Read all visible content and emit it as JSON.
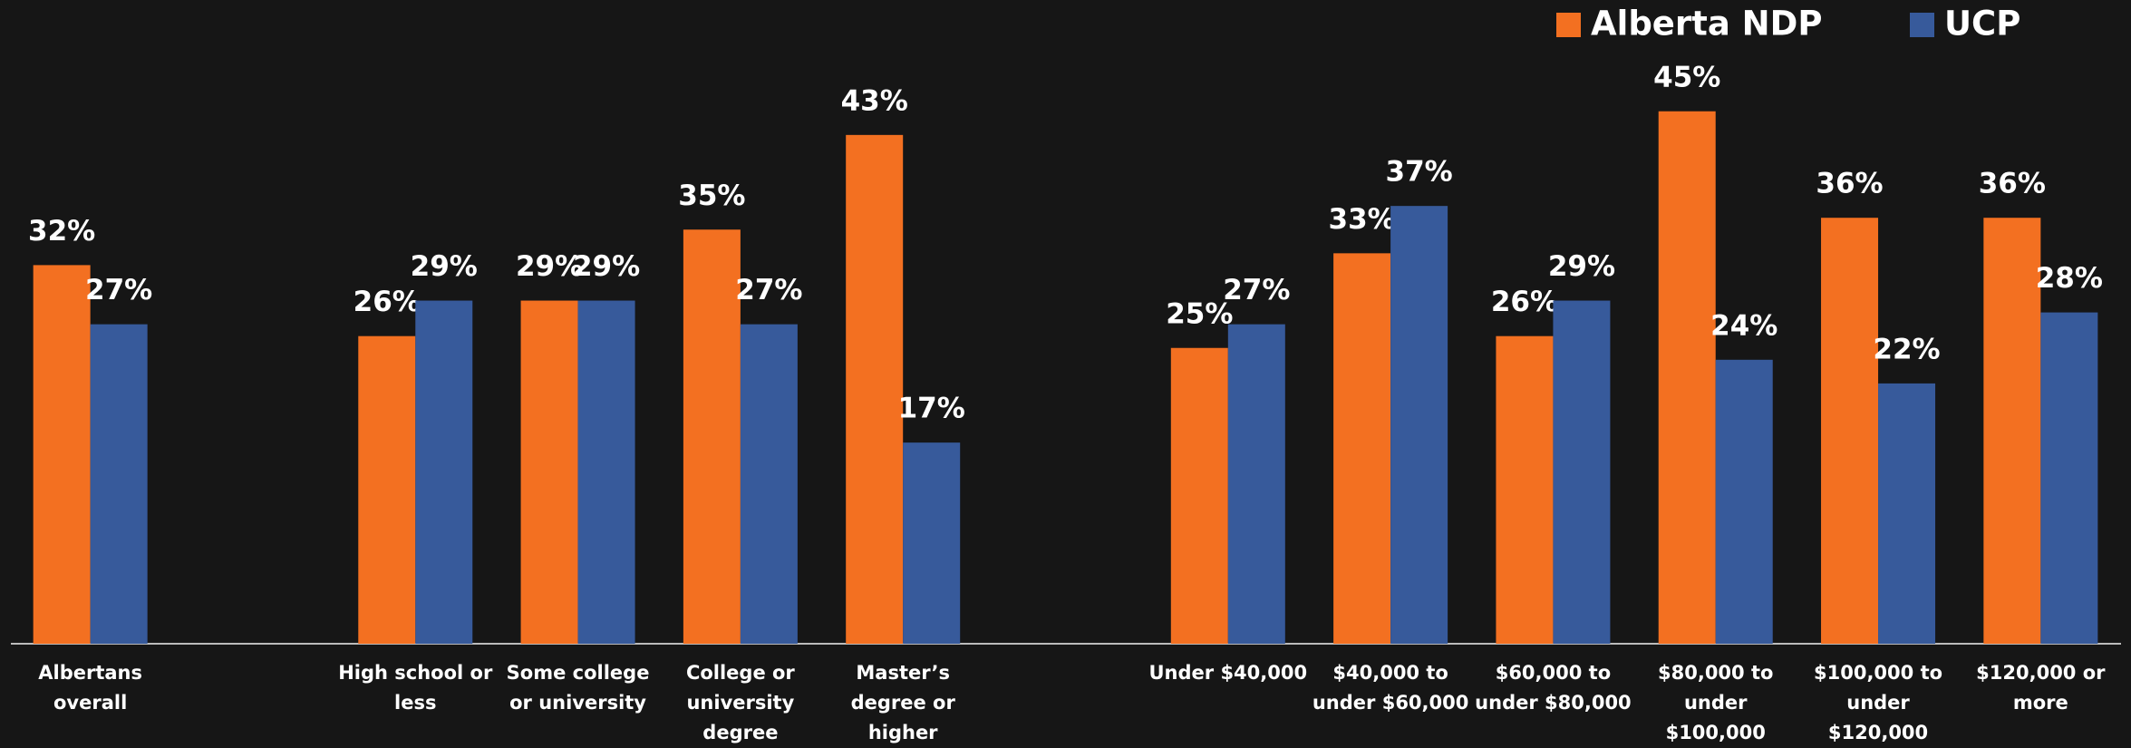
{
  "chart_data": {
    "type": "bar",
    "categories": [
      "Albertans overall",
      null,
      "High school or less",
      "Some college or university",
      "College or university degree",
      "Master’s degree or higher",
      null,
      "Under $40,000",
      "$40,000 to under $60,000",
      "$60,000 to under $80,000",
      "$80,000 to under $100,000",
      "$100,000 to under $120,000",
      "$120,000 or more"
    ],
    "series": [
      {
        "name": "Alberta NDP",
        "color": "#f37021",
        "values": [
          32,
          null,
          26,
          29,
          35,
          43,
          null,
          25,
          33,
          26,
          45,
          36,
          36
        ],
        "value_labels": [
          "32%",
          null,
          "26%",
          "29%",
          "35%",
          "43%",
          null,
          "25%",
          "33%",
          "26%",
          "45%",
          "36%",
          "36%"
        ]
      },
      {
        "name": "UCP",
        "color": "#375a9b",
        "values": [
          27,
          null,
          29,
          29,
          27,
          17,
          null,
          27,
          37,
          29,
          24,
          22,
          28
        ],
        "value_labels": [
          "27%",
          null,
          "29%",
          "29%",
          "27%",
          "17%",
          null,
          "27%",
          "37%",
          "29%",
          "24%",
          "22%",
          "28%"
        ]
      }
    ],
    "legend": "top-right"
  }
}
